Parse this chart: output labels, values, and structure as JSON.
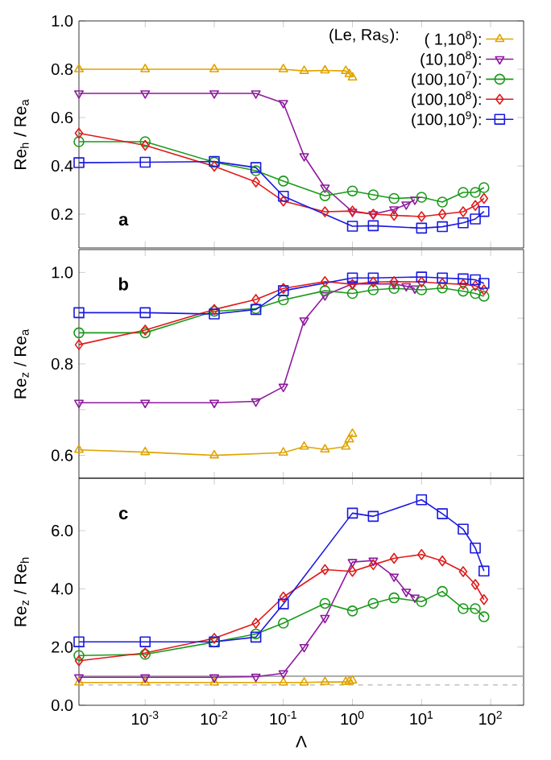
{
  "chart_data": [
    {
      "type": "line",
      "ylabel": "Re$_{h}$ / Re$_{a}$",
      "legend_title": "(Le, Ra$_{S}$):",
      "legend": "top right",
      "tick_labels": "y",
      "log": "x",
      "annotations": [
        "a"
      ],
      "xlim": [
        0.00011,
        300
      ],
      "ylim": [
        0.06,
        1.0
      ],
      "xticks": [
        {
          "value": 0.001,
          "label": null
        },
        {
          "value": 0.01,
          "label": null
        },
        {
          "value": 0.1,
          "label": null
        },
        {
          "value": 1,
          "label": null
        },
        {
          "value": 10,
          "label": null
        },
        {
          "value": 100,
          "label": null
        }
      ],
      "yticks": [
        0.2,
        0.4,
        0.6,
        0.8,
        {
          "value": 1.0,
          "label": "1.0"
        }
      ],
      "series": [
        {
          "name": "( 1,10$^{8}$):",
          "color": "#e0a400",
          "marker": "triangle",
          "x": [
            0.00011,
            0.001,
            0.01,
            0.1,
            0.2,
            0.4,
            0.8,
            0.9,
            1
          ],
          "values": [
            0.8,
            0.8,
            0.8,
            0.8,
            0.793,
            0.795,
            0.793,
            0.78,
            0.766
          ]
        },
        {
          "name": "(10,10$^{8}$):",
          "color": "#8e1a9e",
          "marker": "triangle_down",
          "x": [
            0.00011,
            0.001,
            0.01,
            0.04,
            0.1,
            0.2,
            0.4,
            1,
            2,
            4,
            6,
            8
          ],
          "values": [
            0.7,
            0.7,
            0.7,
            0.7,
            0.66,
            0.44,
            0.31,
            0.21,
            0.2,
            0.22,
            0.24,
            0.26
          ]
        },
        {
          "name": "(100,10$^{7}$):",
          "color": "#1a9a1a",
          "marker": "circle",
          "x": [
            0.00011,
            0.001,
            0.01,
            0.04,
            0.1,
            0.4,
            1,
            2,
            4,
            10,
            20,
            40,
            60,
            80
          ],
          "values": [
            0.5,
            0.5,
            0.415,
            0.38,
            0.337,
            0.276,
            0.296,
            0.28,
            0.265,
            0.27,
            0.25,
            0.29,
            0.29,
            0.31
          ]
        },
        {
          "name": "(100,10$^{8}$):",
          "color": "#e01a1a",
          "marker": "diamond",
          "x": [
            0.00011,
            0.001,
            0.01,
            0.04,
            0.1,
            0.4,
            1,
            2,
            4,
            10,
            20,
            40,
            60,
            80
          ],
          "values": [
            0.535,
            0.485,
            0.398,
            0.333,
            0.254,
            0.21,
            0.213,
            0.2,
            0.195,
            0.19,
            0.2,
            0.21,
            0.236,
            0.265
          ]
        },
        {
          "name": "(100,10$^{9}$):",
          "color": "#1a1ae0",
          "marker": "square",
          "x": [
            0.00011,
            0.001,
            0.01,
            0.04,
            0.1,
            1,
            2,
            10,
            20,
            40,
            60,
            80
          ],
          "values": [
            0.413,
            0.415,
            0.418,
            0.393,
            0.274,
            0.15,
            0.152,
            0.142,
            0.148,
            0.164,
            0.18,
            0.211
          ]
        }
      ]
    },
    {
      "type": "line",
      "ylabel": "Re$_{z}$ / Re$_{a}$",
      "tick_labels": "y",
      "log": "x",
      "annotations": [
        "b"
      ],
      "xlim": [
        0.00011,
        300
      ],
      "ylim": [
        0.55,
        1.05
      ],
      "xticks": [
        {
          "value": 0.001,
          "label": null
        },
        {
          "value": 0.01,
          "label": null
        },
        {
          "value": 0.1,
          "label": null
        },
        {
          "value": 1,
          "label": null
        },
        {
          "value": 10,
          "label": null
        },
        {
          "value": 100,
          "label": null
        }
      ],
      "yticks": [
        0.6,
        {
          "value": 0.7,
          "label": null
        },
        0.8,
        {
          "value": 0.9,
          "label": null
        },
        {
          "value": 1.0,
          "label": "1.0"
        }
      ],
      "series": [
        {
          "color": "#e0a400",
          "marker": "triangle",
          "x": [
            0.00011,
            0.001,
            0.01,
            0.1,
            0.2,
            0.4,
            0.8,
            0.9,
            1
          ],
          "values": [
            0.612,
            0.607,
            0.6,
            0.606,
            0.619,
            0.613,
            0.619,
            0.635,
            0.647
          ]
        },
        {
          "color": "#8e1a9e",
          "marker": "triangle_down",
          "x": [
            0.00011,
            0.001,
            0.01,
            0.04,
            0.1,
            0.2,
            0.4,
            1,
            2,
            4,
            6,
            8
          ],
          "values": [
            0.715,
            0.715,
            0.715,
            0.718,
            0.75,
            0.895,
            0.95,
            0.975,
            null,
            0.975,
            0.97,
            0.965
          ]
        },
        {
          "color": "#1a9a1a",
          "marker": "circle",
          "x": [
            0.00011,
            0.001,
            0.01,
            0.04,
            0.1,
            0.4,
            1,
            2,
            4,
            10,
            20,
            40,
            60,
            80
          ],
          "values": [
            0.868,
            0.868,
            0.915,
            0.921,
            0.94,
            0.96,
            0.954,
            0.962,
            0.965,
            0.962,
            0.966,
            0.959,
            0.954,
            0.948
          ]
        },
        {
          "color": "#e01a1a",
          "marker": "diamond",
          "x": [
            0.00011,
            0.001,
            0.01,
            0.04,
            0.1,
            0.4,
            1,
            2,
            4,
            10,
            20,
            40,
            60,
            80
          ],
          "values": [
            0.842,
            0.874,
            0.919,
            0.941,
            0.965,
            0.98,
            0.974,
            0.979,
            0.98,
            0.979,
            0.976,
            0.974,
            0.971,
            0.962
          ]
        },
        {
          "color": "#1a1ae0",
          "marker": "square",
          "x": [
            0.00011,
            0.001,
            0.01,
            0.04,
            0.1,
            1,
            2,
            10,
            20,
            40,
            60,
            80
          ],
          "values": [
            0.912,
            0.912,
            0.909,
            0.919,
            0.96,
            0.988,
            0.988,
            0.99,
            0.988,
            0.986,
            0.984,
            0.976
          ]
        }
      ]
    },
    {
      "type": "line",
      "ylabel": "Re$_{z}$ / Re$_{h}$",
      "xlabel": "Λ",
      "log": "x",
      "annotations": [
        "c"
      ],
      "xlim": [
        0.00011,
        300
      ],
      "ylim": [
        0,
        7.8
      ],
      "xticks": [
        {
          "value": 0.001,
          "label": "10$^{-3}$"
        },
        {
          "value": 0.01,
          "label": "10$^{-2}$"
        },
        {
          "value": 0.1,
          "label": "10$^{-1}$"
        },
        {
          "value": 1,
          "label": "10$^{0}$"
        },
        {
          "value": 10,
          "label": "10$^{1}$"
        },
        {
          "value": 100,
          "label": "10$^{2}$"
        }
      ],
      "yticks": [
        {
          "value": 0,
          "label": "0.0"
        },
        {
          "value": 2,
          "label": "2.0"
        },
        {
          "value": 4,
          "label": "4.0"
        },
        {
          "value": 6,
          "label": "6.0"
        }
      ],
      "ref_lines": [
        {
          "axis": "y",
          "value": 1.0,
          "color": "#a0a0a0",
          "line_style": "solid"
        },
        {
          "axis": "y",
          "value": 0.7,
          "color": "#c0c0c0",
          "line_style": "dashed"
        }
      ],
      "series": [
        {
          "color": "#e0a400",
          "marker": "triangle",
          "x": [
            0.00011,
            0.001,
            0.01,
            0.1,
            0.2,
            0.4,
            0.8,
            0.9,
            1
          ],
          "values": [
            0.78,
            0.78,
            0.78,
            0.78,
            0.78,
            0.8,
            0.8,
            0.82,
            0.85
          ]
        },
        {
          "color": "#8e1a9e",
          "marker": "triangle_down",
          "x": [
            0.00011,
            0.001,
            0.01,
            0.04,
            0.1,
            0.2,
            0.4,
            1,
            2,
            4,
            6,
            8
          ],
          "values": [
            0.96,
            0.96,
            0.96,
            0.98,
            1.1,
            2.0,
            3.0,
            4.92,
            4.97,
            4.42,
            3.9,
            3.7
          ]
        },
        {
          "color": "#1a9a1a",
          "marker": "circle",
          "x": [
            0.00011,
            0.001,
            0.01,
            0.04,
            0.1,
            0.4,
            1,
            2,
            4,
            10,
            20,
            40,
            60,
            80
          ],
          "values": [
            1.71,
            1.75,
            2.17,
            2.45,
            2.82,
            3.5,
            3.24,
            3.5,
            3.69,
            3.56,
            3.91,
            3.32,
            3.32,
            3.04
          ]
        },
        {
          "color": "#e01a1a",
          "marker": "diamond",
          "x": [
            0.00011,
            0.001,
            0.01,
            0.04,
            0.1,
            0.4,
            1,
            2,
            4,
            10,
            20,
            40,
            60,
            80
          ],
          "values": [
            1.53,
            1.8,
            2.3,
            2.82,
            3.72,
            4.66,
            4.6,
            4.83,
            5.05,
            5.18,
            4.96,
            4.59,
            4.15,
            3.63
          ]
        },
        {
          "color": "#1a1ae0",
          "marker": "square",
          "x": [
            0.00011,
            0.001,
            0.01,
            0.04,
            0.1,
            1,
            2,
            10,
            20,
            40,
            60,
            80
          ],
          "values": [
            2.18,
            2.18,
            2.18,
            2.34,
            3.48,
            6.6,
            6.49,
            7.06,
            6.58,
            6.05,
            5.4,
            4.61
          ]
        }
      ]
    }
  ]
}
